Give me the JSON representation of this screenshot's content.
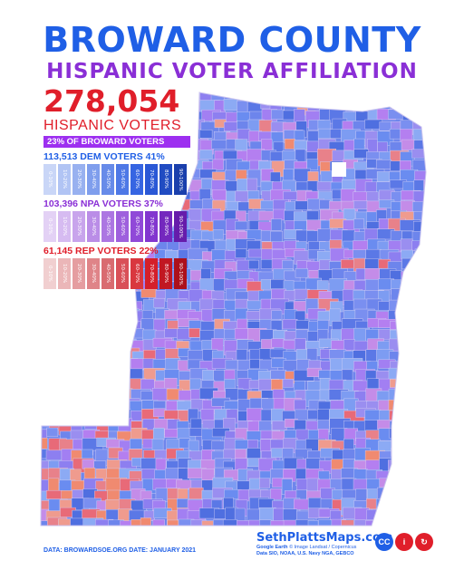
{
  "title": "BROWARD COUNTY",
  "subtitle": "HISPANIC VOTER AFFILIATION",
  "total": {
    "value": "278,054",
    "label": "HISPANIC VOTERS",
    "share": "23% OF BROWARD VOTERS"
  },
  "parties": [
    {
      "label": "113,513 DEM VOTERS 41%",
      "color": "#1f5fe6",
      "swatches": [
        "0-10%",
        "10-20%",
        "20-30%",
        "30-40%",
        "40-50%",
        "50-60%",
        "60-70%",
        "70-80%",
        "80-90%",
        "90-100%"
      ],
      "palette": [
        "#c9d6f7",
        "#b1c4f4",
        "#98b1f0",
        "#7f9eed",
        "#678be9",
        "#4e78e6",
        "#3665e2",
        "#2a58d6",
        "#214cc2",
        "#1a3fac"
      ]
    },
    {
      "label": "103,396 NPA VOTERS 37%",
      "color": "#8a2fd6",
      "swatches": [
        "0-10%",
        "10-20%",
        "20-30%",
        "30-40%",
        "40-50%",
        "50-60%",
        "60-70%",
        "70-80%",
        "80-90%",
        "90-100%"
      ],
      "palette": [
        "#e3d1f5",
        "#d6bbf1",
        "#c8a4ec",
        "#ba8de7",
        "#ac76e2",
        "#9e60dd",
        "#9049d8",
        "#8236cf",
        "#7428be",
        "#661cab"
      ]
    },
    {
      "label": "61,145 REP VOTERS 22%",
      "color": "#e01e2a",
      "swatches": [
        "0-10%",
        "10-20%",
        "20-30%",
        "30-40%",
        "40-50%",
        "50-60%",
        "60-70%",
        "70-80%",
        "80-90%",
        "90-100%"
      ],
      "palette": [
        "#f1cfd0",
        "#ebb6b8",
        "#e59da0",
        "#df8488",
        "#d96b70",
        "#d95058",
        "#d9373f",
        "#d41f2a",
        "#c11722",
        "#ac101b"
      ]
    }
  ],
  "credits": "DATA: BROWARDSOE.ORG   DATE: JANUARY 2021",
  "brand": {
    "site": "SethPlattsMaps.com",
    "engine": "Google Earth",
    "image_credit": "© Image Landsat / Copernicus",
    "sources": "Data SIO, NOAA, U.S. Navy NGA, GEBCO"
  },
  "licenses": [
    {
      "icon": "cc-icon",
      "text": "CC",
      "color": "#1f5fe6"
    },
    {
      "icon": "attribution-icon",
      "text": "i",
      "color": "#e01e2a"
    },
    {
      "icon": "sharealike-icon",
      "text": "↻",
      "color": "#e01e2a"
    }
  ]
}
